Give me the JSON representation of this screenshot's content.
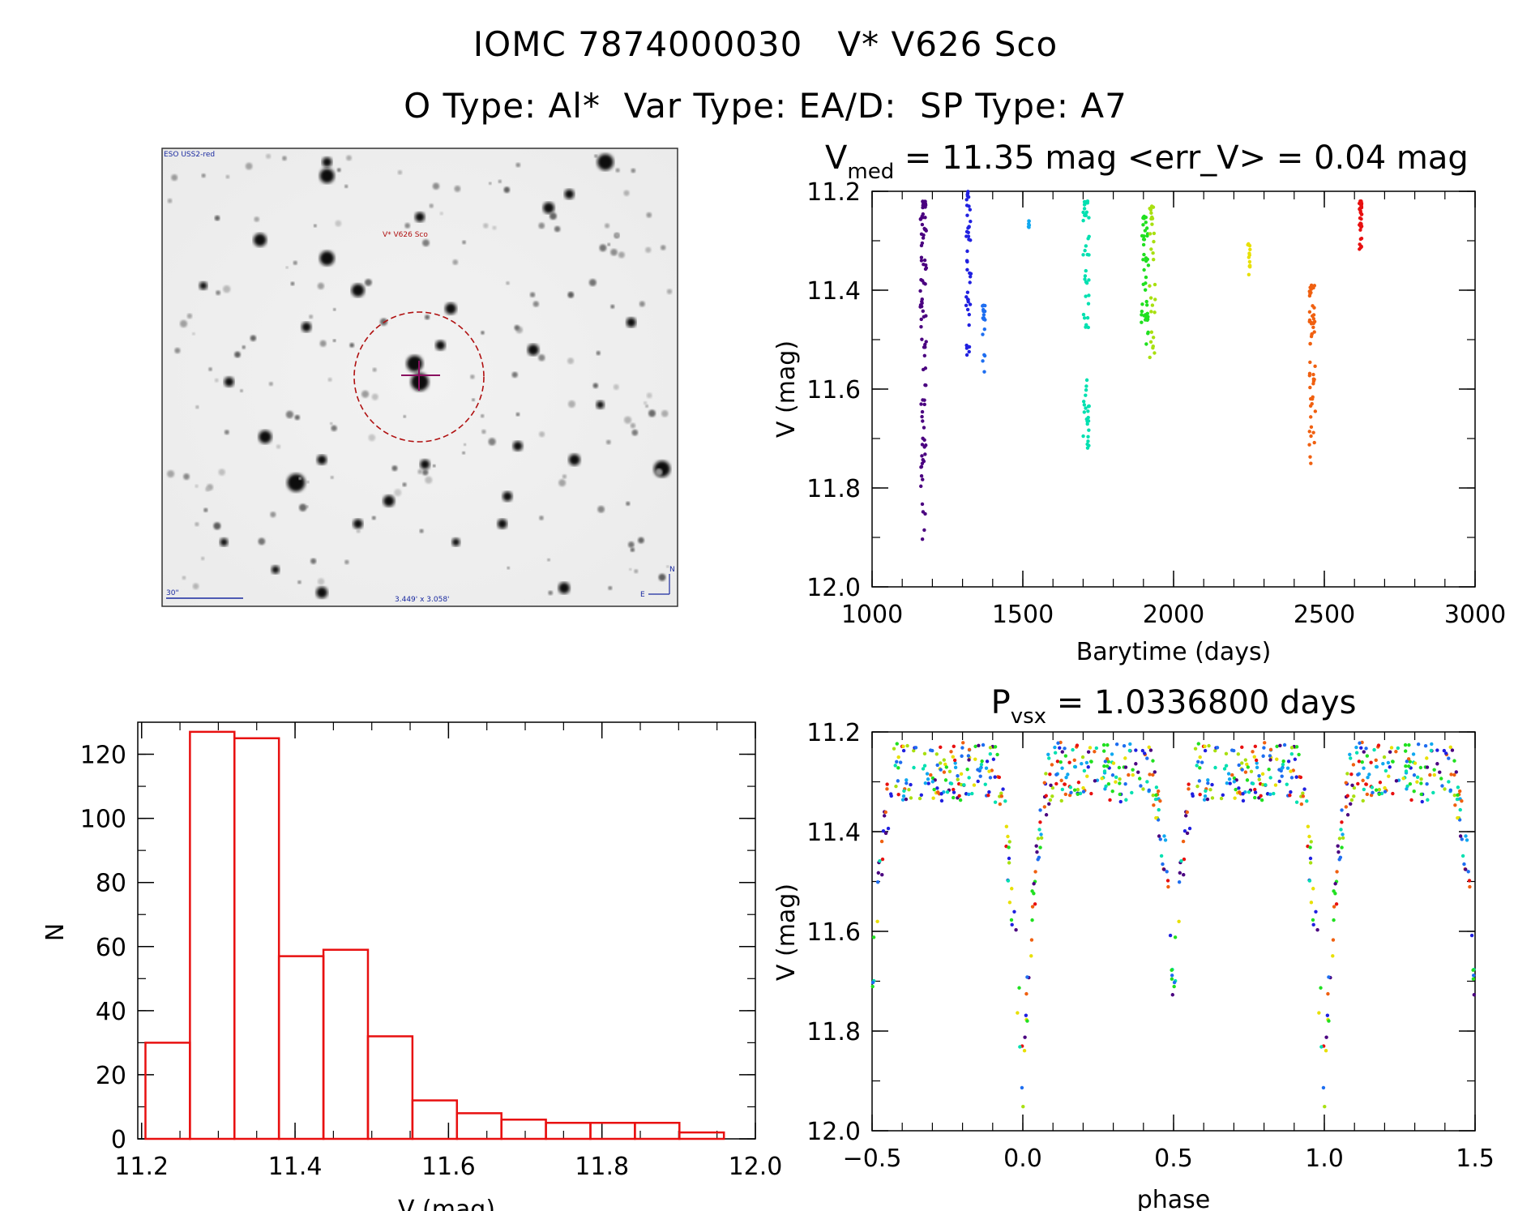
{
  "header": {
    "title_line1": "IOMC 7874000030   V* V626 Sco",
    "title_line2": "O Type: Al*  Var Type: EA/D:  SP Type: A7"
  },
  "finder_chart": {
    "survey_label": "ESO USS2-red",
    "target_label": "V* V626 Sco",
    "scale_label": "30\"",
    "fov_label": "3.449' x 3.058'",
    "north_label": "N",
    "east_label": "E"
  },
  "chart_data": [
    {
      "id": "light_curve",
      "type": "scatter",
      "title_main": "V",
      "title_sub": "med",
      "title_rest": " = 11.35 mag <err_V> = 0.04 mag",
      "xlabel": "Barytime (days)",
      "ylabel": "V (mag)",
      "xlim": [
        1000,
        3000
      ],
      "ylim": [
        12.0,
        11.2
      ],
      "xticks": [
        1000,
        1500,
        2000,
        2500,
        3000
      ],
      "yticks": [
        "11.2",
        "11.4",
        "11.6",
        "11.8",
        "12.0"
      ],
      "clusters": [
        {
          "x": 1170,
          "xspread": 10,
          "ymin": 11.22,
          "ymax": 11.91,
          "n": 90,
          "color": "#4a0080"
        },
        {
          "x": 1320,
          "xspread": 8,
          "ymin": 11.2,
          "ymax": 11.54,
          "n": 45,
          "color": "#2020e0"
        },
        {
          "x": 1370,
          "xspread": 5,
          "ymin": 11.43,
          "ymax": 11.6,
          "n": 18,
          "color": "#1e6ef0"
        },
        {
          "x": 1520,
          "xspread": 3,
          "ymin": 11.26,
          "ymax": 11.3,
          "n": 6,
          "color": "#10a8f0"
        },
        {
          "x": 1710,
          "xspread": 10,
          "ymin": 11.22,
          "ymax": 11.72,
          "n": 60,
          "color": "#00e0b0"
        },
        {
          "x": 1905,
          "xspread": 12,
          "ymin": 11.25,
          "ymax": 11.51,
          "n": 45,
          "color": "#20e020"
        },
        {
          "x": 1930,
          "xspread": 10,
          "ymin": 11.23,
          "ymax": 11.54,
          "n": 30,
          "color": "#a8e010"
        },
        {
          "x": 2250,
          "xspread": 4,
          "ymin": 11.3,
          "ymax": 11.39,
          "n": 12,
          "color": "#e8e000"
        },
        {
          "x": 2460,
          "xspread": 10,
          "ymin": 11.39,
          "ymax": 11.76,
          "n": 55,
          "color": "#f06010"
        },
        {
          "x": 2620,
          "xspread": 4,
          "ymin": 11.22,
          "ymax": 11.32,
          "n": 40,
          "color": "#e81010"
        }
      ]
    },
    {
      "id": "histogram",
      "type": "bar",
      "xlabel": "V (mag)",
      "ylabel": "N",
      "xlim": [
        11.195,
        12.0
      ],
      "ylim": [
        0,
        130
      ],
      "xticks": [
        "11.2",
        "11.4",
        "11.6",
        "11.8",
        "12.0"
      ],
      "yticks": [
        "0",
        "20",
        "40",
        "60",
        "80",
        "100",
        "120"
      ],
      "bin_edges": [
        11.205,
        11.263,
        11.321,
        11.379,
        11.437,
        11.495,
        11.553,
        11.611,
        11.669,
        11.727,
        11.785,
        11.843,
        11.901,
        11.959
      ],
      "counts": [
        30,
        127,
        125,
        57,
        59,
        32,
        12,
        8,
        6,
        5,
        5,
        5,
        2
      ],
      "color": "#e81010"
    },
    {
      "id": "phase_curve",
      "type": "scatter",
      "title_main": "P",
      "title_sub": "vsx",
      "title_rest": " = 1.0336800 days",
      "xlabel": "phase",
      "ylabel": "V (mag)",
      "xlim": [
        -0.5,
        1.5
      ],
      "ylim": [
        12.0,
        11.2
      ],
      "xticks": [
        "−0.5",
        "0.0",
        "0.5",
        "1.0",
        "1.5"
      ],
      "yticks": [
        "11.2",
        "11.4",
        "11.6",
        "11.8",
        "12.0"
      ],
      "period_days": 1.03368,
      "primary_min_depth": 11.91,
      "secondary_min_depth": 11.7,
      "max_level": 11.28
    }
  ]
}
